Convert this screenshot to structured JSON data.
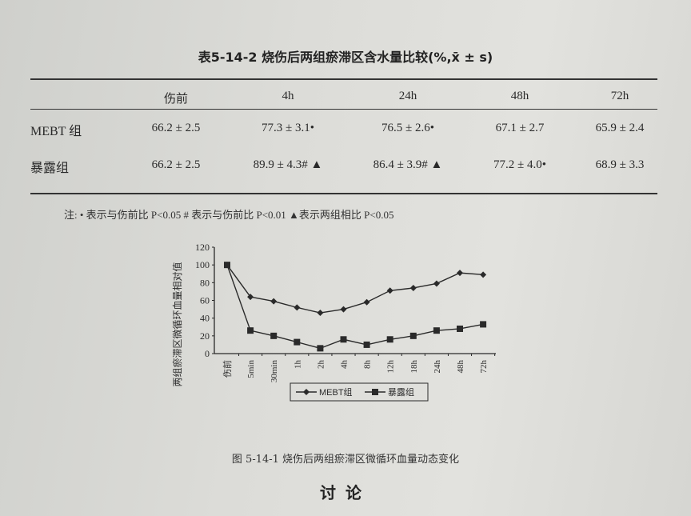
{
  "table": {
    "title": "表5-14-2  烧伤后两组瘀滞区含水量比较(%,x̄ ± s)",
    "columns": [
      "",
      "伤前",
      "4h",
      "24h",
      "48h",
      "72h"
    ],
    "rows": [
      {
        "label": "MEBT 组",
        "cells": [
          "66.2 ± 2.5",
          "77.3 ± 3.1•",
          "76.5 ± 2.6•",
          "67.1 ± 2.7",
          "65.9 ± 2.4"
        ]
      },
      {
        "label": "暴露组",
        "cells": [
          "66.2 ± 2.5",
          "89.9 ± 4.3# ▲",
          "86.4 ± 3.9# ▲",
          "77.2 ± 4.0•",
          "68.9 ± 3.3"
        ]
      }
    ],
    "note": "注: • 表示与伤前比 P<0.05    # 表示与伤前比 P<0.01    ▲表示两组相比 P<0.05"
  },
  "chart_data": {
    "type": "line",
    "title": "",
    "ylabel": "两组瘀滞区微循环血量相对值",
    "xlabel": "",
    "ylim": [
      0,
      120
    ],
    "yticks": [
      0,
      20,
      40,
      60,
      80,
      100,
      120
    ],
    "categories": [
      "伤前",
      "5min",
      "30min",
      "1h",
      "2h",
      "4h",
      "8h",
      "12h",
      "18h",
      "24h",
      "48h",
      "72h"
    ],
    "series": [
      {
        "name": "MEBT组",
        "marker": "diamond",
        "values": [
          100,
          64,
          59,
          52,
          46,
          50,
          58,
          71,
          74,
          79,
          91,
          89
        ]
      },
      {
        "name": "暴露组",
        "marker": "square",
        "values": [
          100,
          26,
          20,
          13,
          6,
          16,
          10,
          16,
          20,
          26,
          28,
          33
        ]
      }
    ],
    "legend": "bottom",
    "grid": false,
    "color": "#2a2a2a"
  },
  "caption": "图  5-14-1   烧伤后两组瘀滞区微循环血量动态变化",
  "heading": "讨论"
}
